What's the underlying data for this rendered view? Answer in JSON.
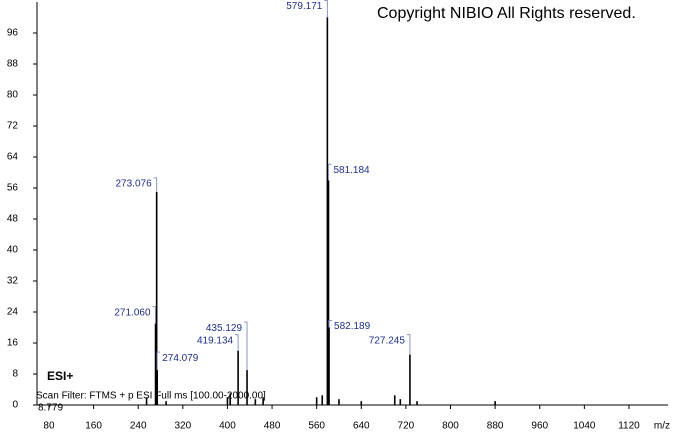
{
  "chart_data": {
    "type": "stem",
    "annotation": "Copyright NIBIO All Rights reserved.",
    "ionization": "ESI+",
    "scan_filter": "Scan Filter: FTMS + p ESI Full ms [100.00-2000.00]",
    "retention_time": "8.779",
    "x_label": "m/z",
    "color": "#000000",
    "label_color": "#1f2f8c",
    "x": [
      255,
      271.06,
      273.076,
      274.079,
      290,
      400,
      405,
      419.134,
      435.129,
      450,
      464,
      560,
      570,
      579.171,
      580.17,
      581.184,
      582.189,
      600,
      640,
      700,
      710,
      727.245,
      740,
      880
    ],
    "values": [
      2,
      21,
      55,
      9,
      1,
      2,
      3,
      14,
      9,
      1.5,
      2,
      2,
      2.5,
      100,
      30,
      58,
      20,
      1.5,
      1,
      2.5,
      1.5,
      13,
      1,
      1
    ],
    "x_labels": [
      null,
      "271.060",
      "273.076",
      "274.079",
      null,
      null,
      null,
      "419.134",
      "435.129",
      null,
      null,
      null,
      null,
      "579.171",
      null,
      "581.184",
      "582.189",
      null,
      null,
      null,
      null,
      "727.245",
      null,
      null
    ],
    "xlim": [
      58.5,
      1190
    ],
    "xticks": [
      80,
      160,
      240,
      320,
      400,
      480,
      560,
      640,
      720,
      800,
      880,
      960,
      1040,
      1120
    ],
    "ylim": [
      0,
      104
    ],
    "yticks": [
      0,
      8,
      16,
      24,
      32,
      40,
      48,
      56,
      64,
      72,
      80,
      88,
      96
    ]
  }
}
